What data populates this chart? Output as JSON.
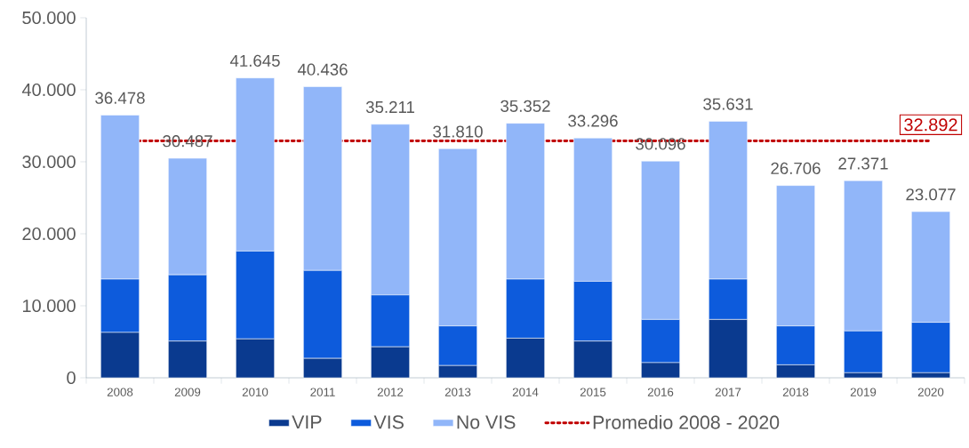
{
  "chart_data": {
    "type": "bar",
    "stacked": true,
    "categories": [
      "2008",
      "2009",
      "2010",
      "2011",
      "2012",
      "2013",
      "2014",
      "2015",
      "2016",
      "2017",
      "2018",
      "2019",
      "2020"
    ],
    "series": [
      {
        "name": "VIP",
        "color": "#0a3a8f",
        "values": [
          6300,
          5100,
          5400,
          2700,
          4300,
          1700,
          5500,
          5100,
          2100,
          8100,
          1800,
          700,
          700
        ]
      },
      {
        "name": "VIS",
        "color": "#0d5bdc",
        "values": [
          7400,
          9200,
          12200,
          12200,
          7200,
          5500,
          8200,
          8300,
          6000,
          5600,
          5400,
          5800,
          7000
        ]
      },
      {
        "name": "No VIS",
        "color": "#91b6f9",
        "values": [
          22778,
          16187,
          24045,
          25536,
          23711,
          24610,
          21652,
          19896,
          21996,
          21931,
          19506,
          20871,
          15377
        ]
      }
    ],
    "totals": [
      "36.478",
      "30.487",
      "41.645",
      "40.436",
      "35.211",
      "31.810",
      "35.352",
      "33.296",
      "30.096",
      "35.631",
      "26.706",
      "27.371",
      "23.077"
    ],
    "ylim": [
      0,
      50000
    ],
    "yticks": [
      0,
      {
        "value": 10000,
        "label": "10.000"
      },
      {
        "value": 20000,
        "label": "20.000"
      },
      {
        "value": 30000,
        "label": "30.000"
      },
      {
        "value": 40000,
        "label": "40.000"
      },
      {
        "value": 50000,
        "label": "50.000"
      }
    ],
    "ref_lines": [
      {
        "axis": "y",
        "value": 32892,
        "label": "Promedio 2008 - 2020",
        "color": "#c00000",
        "line_style": "dotted"
      }
    ],
    "annotations": [
      "32.892"
    ],
    "grid": false,
    "legend": "bottom"
  }
}
